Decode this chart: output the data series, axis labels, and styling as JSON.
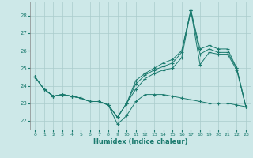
{
  "xlabel": "Humidex (Indice chaleur)",
  "bg_color": "#cde8e8",
  "grid_color": "#aacccc",
  "line_color": "#1a7a6e",
  "xlim": [
    -0.5,
    23.5
  ],
  "ylim": [
    21.5,
    28.8
  ],
  "yticks": [
    22,
    23,
    24,
    25,
    26,
    27,
    28
  ],
  "xticks": [
    0,
    1,
    2,
    3,
    4,
    5,
    6,
    7,
    8,
    9,
    10,
    11,
    12,
    13,
    14,
    15,
    16,
    17,
    18,
    19,
    20,
    21,
    22,
    23
  ],
  "series": [
    [
      24.5,
      23.8,
      23.4,
      23.5,
      23.4,
      23.3,
      23.1,
      23.1,
      22.9,
      22.2,
      23.0,
      23.8,
      24.4,
      24.7,
      24.9,
      25.0,
      25.6,
      28.3,
      25.2,
      25.9,
      25.8,
      25.8,
      24.9,
      22.8
    ],
    [
      24.5,
      23.8,
      23.4,
      23.5,
      23.4,
      23.3,
      23.1,
      23.1,
      22.9,
      22.2,
      23.0,
      24.1,
      24.6,
      24.9,
      25.1,
      25.3,
      25.9,
      28.3,
      25.8,
      26.1,
      25.9,
      25.9,
      25.0,
      22.8
    ],
    [
      24.5,
      23.8,
      23.4,
      23.5,
      23.4,
      23.3,
      23.1,
      23.1,
      22.9,
      22.2,
      23.0,
      24.3,
      24.7,
      25.0,
      25.3,
      25.5,
      26.0,
      28.3,
      26.1,
      26.3,
      26.1,
      26.1,
      25.0,
      22.8
    ],
    [
      24.5,
      23.8,
      23.4,
      23.5,
      23.4,
      23.3,
      23.1,
      23.1,
      22.9,
      21.8,
      22.3,
      23.1,
      23.5,
      23.5,
      23.5,
      23.4,
      23.3,
      23.2,
      23.1,
      23.0,
      23.0,
      23.0,
      22.9,
      22.8
    ]
  ]
}
